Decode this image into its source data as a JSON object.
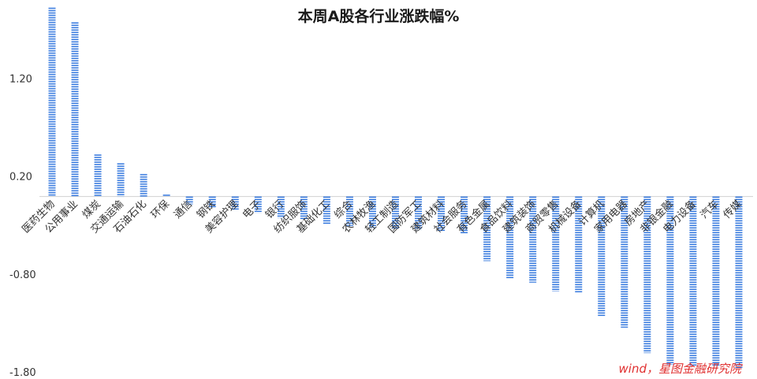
{
  "chart_data": {
    "type": "bar",
    "title": "本周A股各行业涨跌幅%",
    "xlabel": "",
    "ylabel": "",
    "ylim": [
      -1.8,
      2.0
    ],
    "yticks": [
      1.2,
      0.2,
      -0.8,
      -1.8
    ],
    "ytick_labels": [
      "1.20",
      "0.20",
      "-0.80",
      "-1.80"
    ],
    "grid": false,
    "legend": "none",
    "bar_color": "#3f7fe0",
    "categories": [
      "医药生物",
      "公用事业",
      "煤炭",
      "交通运输",
      "石油石化",
      "环保",
      "通信",
      "钢铁",
      "美容护理",
      "电子",
      "银行",
      "纺织服饰",
      "基础化工",
      "综合",
      "农林牧渔",
      "轻工制造",
      "国防军工",
      "建筑材料",
      "社会服务",
      "有色金属",
      "食品饮料",
      "建筑装饰",
      "商贸零售",
      "机械设备",
      "计算机",
      "家用电器",
      "房地产",
      "非银金融",
      "电力设备",
      "汽车",
      "传媒"
    ],
    "values": [
      1.93,
      1.78,
      0.43,
      0.34,
      0.23,
      0.02,
      -0.08,
      -0.12,
      -0.14,
      -0.17,
      -0.22,
      -0.23,
      -0.28,
      -0.3,
      -0.32,
      -0.33,
      -0.34,
      -0.36,
      -0.38,
      -0.66,
      -0.84,
      -0.88,
      -0.97,
      -0.98,
      -1.22,
      -1.34,
      -1.6,
      -1.72,
      -1.73,
      -1.74,
      -1.76
    ]
  },
  "source_note": "wind，星图金融研究院"
}
